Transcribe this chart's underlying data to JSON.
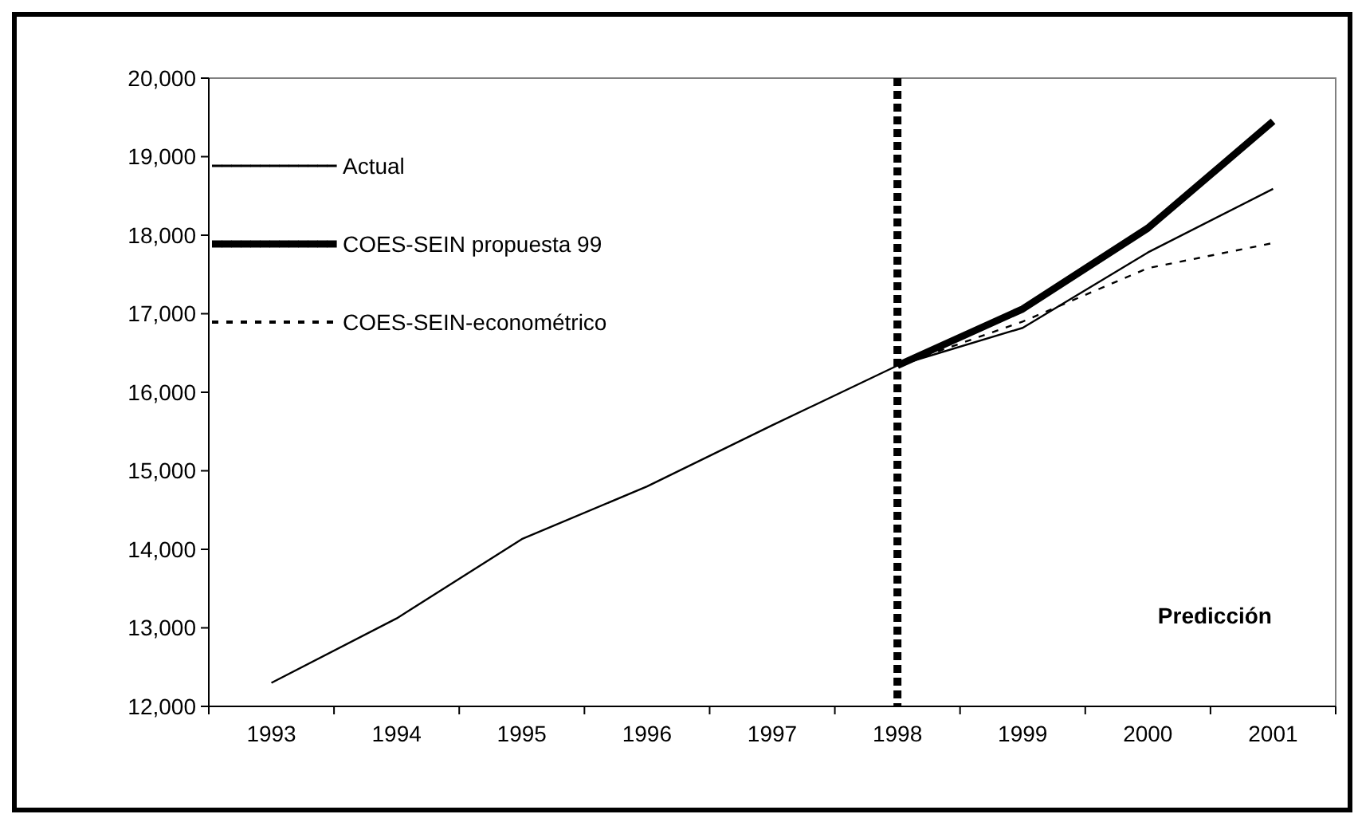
{
  "chart_data": {
    "type": "line",
    "categories": [
      "1993",
      "1994",
      "1995",
      "1996",
      "1997",
      "1998",
      "1999",
      "2000",
      "2001"
    ],
    "series": [
      {
        "name": "Actual",
        "color": "#000000",
        "line_style": "solid",
        "values": [
          12300,
          13120,
          14130,
          14800,
          15580,
          16340,
          16820,
          17780,
          18590
        ]
      },
      {
        "name": "COES-SEIN propuesta 99",
        "color": "#000000",
        "line_style": "solid",
        "values": [
          null,
          null,
          null,
          null,
          null,
          16340,
          17060,
          18090,
          19450
        ]
      },
      {
        "name": "COES-SEIN-econométrico",
        "color": "#000000",
        "line_style": "dashed",
        "values": [
          null,
          null,
          null,
          null,
          null,
          16340,
          16900,
          17580,
          17900
        ]
      }
    ],
    "ylim": [
      12000,
      20000
    ],
    "yticks": [
      {
        "value": 12000,
        "label": "12,000"
      },
      {
        "value": 13000,
        "label": "13,000"
      },
      {
        "value": 14000,
        "label": "14,000"
      },
      {
        "value": 15000,
        "label": "15,000"
      },
      {
        "value": 16000,
        "label": "16,000"
      },
      {
        "value": 17000,
        "label": "17,000"
      },
      {
        "value": 18000,
        "label": "18,000"
      },
      {
        "value": 19000,
        "label": "19,000"
      },
      {
        "value": 20000,
        "label": "20,000"
      }
    ],
    "ref_lines": [
      {
        "axis": "x",
        "value": "1998",
        "color": "#000000",
        "line_style": "dotted"
      }
    ],
    "annotations": [
      "Predicción"
    ],
    "legend": "top left",
    "grid": false,
    "marker": "none"
  }
}
